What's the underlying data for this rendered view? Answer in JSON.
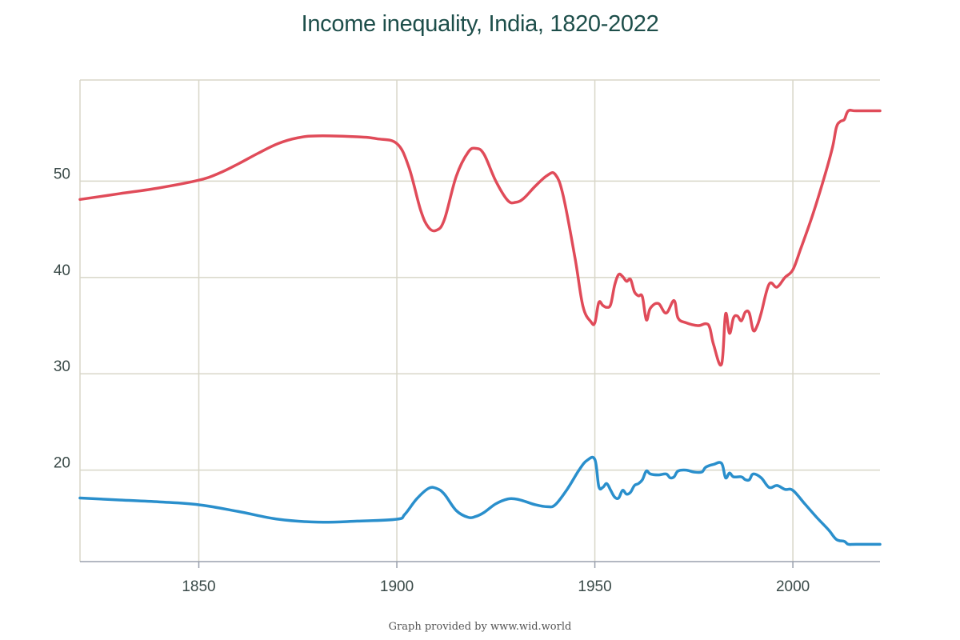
{
  "chart_data": {
    "type": "line",
    "title": "Income inequality, India, 1820-2022",
    "xlabel": "",
    "ylabel": "",
    "xlim": [
      1820,
      2022
    ],
    "ylim": [
      10.5,
      60.5
    ],
    "x_ticks": [
      1850,
      1900,
      1950,
      2000
    ],
    "y_ticks": [
      20,
      30,
      40,
      50
    ],
    "grid": true,
    "legend": "none",
    "series": [
      {
        "color": "#e04b59",
        "points": [
          [
            1820,
            48.1
          ],
          [
            1830,
            48.7
          ],
          [
            1840,
            49.3
          ],
          [
            1850,
            50.1
          ],
          [
            1855,
            50.8
          ],
          [
            1860,
            51.8
          ],
          [
            1865,
            52.9
          ],
          [
            1870,
            53.9
          ],
          [
            1875,
            54.5
          ],
          [
            1880,
            54.7
          ],
          [
            1890,
            54.6
          ],
          [
            1895,
            54.4
          ],
          [
            1900,
            53.9
          ],
          [
            1903,
            51.5
          ],
          [
            1906,
            47.0
          ],
          [
            1908,
            45.2
          ],
          [
            1910,
            44.9
          ],
          [
            1912,
            46.0
          ],
          [
            1915,
            50.5
          ],
          [
            1918,
            53.0
          ],
          [
            1920,
            53.4
          ],
          [
            1922,
            52.8
          ],
          [
            1925,
            50.0
          ],
          [
            1928,
            48.0
          ],
          [
            1930,
            47.8
          ],
          [
            1932,
            48.2
          ],
          [
            1935,
            49.5
          ],
          [
            1938,
            50.6
          ],
          [
            1940,
            50.7
          ],
          [
            1942,
            48.5
          ],
          [
            1945,
            42.0
          ],
          [
            1947,
            37.0
          ],
          [
            1949,
            35.4
          ],
          [
            1950,
            35.3
          ],
          [
            1951,
            37.4
          ],
          [
            1952,
            37.1
          ],
          [
            1953,
            36.9
          ],
          [
            1954,
            37.2
          ],
          [
            1955,
            39.2
          ],
          [
            1956,
            40.3
          ],
          [
            1957,
            40.1
          ],
          [
            1958,
            39.6
          ],
          [
            1959,
            39.8
          ],
          [
            1960,
            38.5
          ],
          [
            1961,
            38.1
          ],
          [
            1962,
            38.0
          ],
          [
            1963,
            35.6
          ],
          [
            1964,
            36.8
          ],
          [
            1966,
            37.3
          ],
          [
            1968,
            36.3
          ],
          [
            1970,
            37.6
          ],
          [
            1971,
            35.8
          ],
          [
            1973,
            35.3
          ],
          [
            1976,
            35.0
          ],
          [
            1978,
            35.2
          ],
          [
            1979,
            34.8
          ],
          [
            1980,
            33.0
          ],
          [
            1982,
            31.0
          ],
          [
            1983,
            36.2
          ],
          [
            1984,
            34.2
          ],
          [
            1985,
            35.8
          ],
          [
            1986,
            36.0
          ],
          [
            1987,
            35.5
          ],
          [
            1988,
            36.4
          ],
          [
            1989,
            36.3
          ],
          [
            1990,
            34.5
          ],
          [
            1991,
            35.0
          ],
          [
            1992,
            36.3
          ],
          [
            1994,
            39.3
          ],
          [
            1996,
            39.0
          ],
          [
            1998,
            40.0
          ],
          [
            2000,
            40.8
          ],
          [
            2002,
            43.0
          ],
          [
            2005,
            46.5
          ],
          [
            2008,
            50.5
          ],
          [
            2010,
            53.5
          ],
          [
            2011,
            55.6
          ],
          [
            2012,
            56.2
          ],
          [
            2013,
            56.4
          ],
          [
            2014,
            57.3
          ],
          [
            2016,
            57.3
          ],
          [
            2022,
            57.3
          ]
        ]
      },
      {
        "color": "#2a8fcc",
        "points": [
          [
            1820,
            17.1
          ],
          [
            1830,
            16.9
          ],
          [
            1840,
            16.7
          ],
          [
            1850,
            16.4
          ],
          [
            1860,
            15.7
          ],
          [
            1870,
            14.9
          ],
          [
            1880,
            14.6
          ],
          [
            1890,
            14.7
          ],
          [
            1900,
            14.9
          ],
          [
            1902,
            15.4
          ],
          [
            1905,
            17.0
          ],
          [
            1908,
            18.1
          ],
          [
            1910,
            18.1
          ],
          [
            1912,
            17.5
          ],
          [
            1915,
            15.8
          ],
          [
            1918,
            15.1
          ],
          [
            1920,
            15.2
          ],
          [
            1922,
            15.6
          ],
          [
            1925,
            16.5
          ],
          [
            1928,
            17.0
          ],
          [
            1930,
            17.0
          ],
          [
            1932,
            16.8
          ],
          [
            1935,
            16.4
          ],
          [
            1938,
            16.2
          ],
          [
            1940,
            16.4
          ],
          [
            1943,
            18.0
          ],
          [
            1946,
            20.0
          ],
          [
            1948,
            21.0
          ],
          [
            1950,
            21.1
          ],
          [
            1951,
            18.3
          ],
          [
            1952,
            18.2
          ],
          [
            1953,
            18.6
          ],
          [
            1954,
            17.9
          ],
          [
            1955,
            17.2
          ],
          [
            1956,
            17.1
          ],
          [
            1957,
            17.9
          ],
          [
            1958,
            17.5
          ],
          [
            1959,
            17.7
          ],
          [
            1960,
            18.4
          ],
          [
            1961,
            18.6
          ],
          [
            1962,
            19.0
          ],
          [
            1963,
            19.9
          ],
          [
            1964,
            19.6
          ],
          [
            1966,
            19.5
          ],
          [
            1968,
            19.6
          ],
          [
            1969,
            19.2
          ],
          [
            1970,
            19.3
          ],
          [
            1971,
            19.9
          ],
          [
            1973,
            20.0
          ],
          [
            1975,
            19.8
          ],
          [
            1977,
            19.8
          ],
          [
            1978,
            20.3
          ],
          [
            1980,
            20.6
          ],
          [
            1982,
            20.7
          ],
          [
            1983,
            19.2
          ],
          [
            1984,
            19.7
          ],
          [
            1985,
            19.3
          ],
          [
            1987,
            19.3
          ],
          [
            1988,
            19.0
          ],
          [
            1989,
            19.0
          ],
          [
            1990,
            19.6
          ],
          [
            1992,
            19.2
          ],
          [
            1994,
            18.2
          ],
          [
            1996,
            18.4
          ],
          [
            1998,
            18.0
          ],
          [
            2000,
            17.9
          ],
          [
            2003,
            16.5
          ],
          [
            2006,
            15.1
          ],
          [
            2009,
            13.8
          ],
          [
            2011,
            12.8
          ],
          [
            2013,
            12.6
          ],
          [
            2014,
            12.3
          ],
          [
            2016,
            12.3
          ],
          [
            2022,
            12.3
          ]
        ]
      }
    ]
  },
  "footer": {
    "credit": "Graph provided by www.wid.world"
  }
}
